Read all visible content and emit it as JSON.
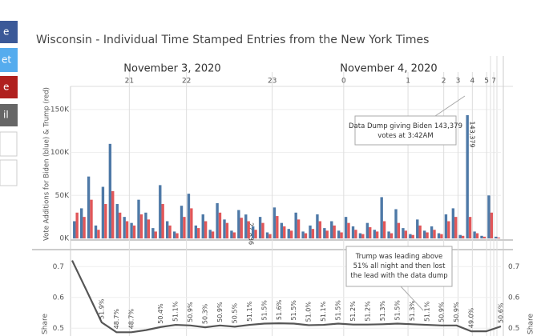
{
  "share_buttons": [
    "e",
    "et",
    "e",
    "il"
  ],
  "title": "Wisconsin - Individual Time Stamped Entries from the New York Times",
  "date_labels": [
    "November 3, 2020",
    "November 4, 2020"
  ],
  "chart_data": [
    {
      "type": "bar",
      "y_label": "Vote Additions for Biden (blue) & Trump (red)",
      "categories": [
        null,
        null,
        null,
        null,
        null,
        null,
        null,
        null,
        "21",
        null,
        null,
        null,
        null,
        null,
        null,
        null,
        "22",
        null,
        null,
        null,
        null,
        null,
        null,
        null,
        null,
        null,
        null,
        null,
        "23",
        null,
        null,
        null,
        null,
        null,
        null,
        null,
        null,
        null,
        "0",
        null,
        null,
        null,
        null,
        null,
        null,
        null,
        null,
        "1",
        null,
        null,
        null,
        null,
        "2",
        null,
        "3",
        null,
        "4",
        null,
        "5",
        "7"
      ],
      "ylim": [
        0,
        175000
      ],
      "yticks": [
        {
          "value": 0,
          "label": "0K"
        },
        {
          "value": 50000,
          "label": "50K"
        },
        {
          "value": 100000,
          "label": "100K"
        },
        {
          "value": 150000,
          "label": "150K"
        }
      ],
      "series": [
        {
          "name": "Biden",
          "color": "#4e79a7",
          "values": [
            20000,
            35000,
            72000,
            15000,
            60000,
            110000,
            40000,
            25000,
            18000,
            45000,
            30000,
            12000,
            62000,
            20000,
            8000,
            38000,
            52000,
            15000,
            28000,
            10000,
            41000,
            22000,
            9000,
            33000,
            27836,
            14000,
            25000,
            7000,
            36000,
            18000,
            11000,
            30000,
            8000,
            15000,
            28000,
            12000,
            20000,
            9000,
            25000,
            14000,
            6000,
            18000,
            10000,
            48000,
            8000,
            34000,
            12000,
            5000,
            22000,
            9000,
            14000,
            6000,
            28000,
            35000,
            4000,
            143379,
            8000,
            3000,
            50000,
            2000
          ],
          "value_labels": [
            null,
            null,
            null,
            null,
            null,
            null,
            null,
            null,
            null,
            null,
            null,
            null,
            null,
            null,
            null,
            null,
            null,
            null,
            null,
            null,
            null,
            null,
            null,
            null,
            "27,836",
            null,
            null,
            null,
            null,
            null,
            null,
            null,
            null,
            null,
            null,
            null,
            null,
            null,
            null,
            null,
            null,
            null,
            null,
            null,
            null,
            null,
            null,
            null,
            null,
            null,
            null,
            null,
            null,
            null,
            null,
            "143,379",
            null,
            null,
            null,
            null
          ]
        },
        {
          "name": "Trump",
          "color": "#e15759",
          "values": [
            30000,
            25000,
            45000,
            10000,
            40000,
            55000,
            30000,
            20000,
            15000,
            28000,
            22000,
            8000,
            40000,
            15000,
            6000,
            25000,
            35000,
            12000,
            20000,
            8000,
            30000,
            18000,
            7000,
            24000,
            20000,
            10000,
            18000,
            5000,
            26000,
            14000,
            9000,
            22000,
            6000,
            11000,
            20000,
            9000,
            15000,
            7000,
            18000,
            10000,
            5000,
            13000,
            8000,
            20000,
            6000,
            18000,
            9000,
            4000,
            15000,
            7000,
            10000,
            5000,
            20000,
            25000,
            3000,
            25000,
            6000,
            2000,
            30000,
            1000
          ]
        }
      ],
      "annotation": "Data Dump giving Biden 143,379 votes at 3:42AM"
    },
    {
      "type": "line",
      "y_label": "Share",
      "ylim": [
        0.48,
        0.75
      ],
      "yticks": [
        0.5,
        0.6,
        0.7
      ],
      "color": "#555555",
      "values": [
        0.72,
        0.62,
        0.519,
        0.487,
        0.487,
        0.494,
        0.504,
        0.511,
        0.509,
        0.503,
        0.509,
        0.505,
        0.511,
        0.515,
        0.516,
        0.515,
        0.51,
        0.511,
        0.515,
        0.512,
        0.512,
        0.513,
        0.515,
        0.513,
        0.511,
        0.509,
        0.509,
        0.49,
        0.49,
        0.506
      ],
      "value_labels": [
        null,
        null,
        "51.9%",
        "48.7%",
        "48.7%",
        null,
        "50.4%",
        "51.1%",
        "50.9%",
        "50.3%",
        "50.9%",
        "50.5%",
        "51.1%",
        "51.5%",
        "51.6%",
        "51.5%",
        "51.0%",
        "51.1%",
        "51.5%",
        "51.2%",
        "51.2%",
        "51.3%",
        "51.5%",
        "51.3%",
        "51.1%",
        "50.9%",
        "50.9%",
        "49.0%",
        null,
        "50.6%"
      ],
      "annotation": "Trump was leading above 51% all night and then lost the lead with the data dump"
    }
  ]
}
